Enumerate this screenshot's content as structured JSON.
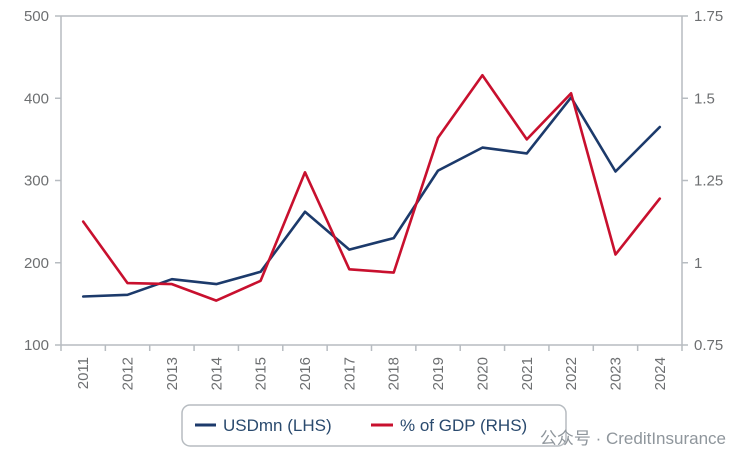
{
  "chart_data": {
    "type": "line",
    "categories": [
      "2011",
      "2012",
      "2013",
      "2014",
      "2015",
      "2016",
      "2017",
      "2018",
      "2019",
      "2020",
      "2021",
      "2022",
      "2023",
      "2024"
    ],
    "series": [
      {
        "name": "USDmn (LHS)",
        "axis": "left",
        "color": "#1c3a6b",
        "values": [
          159,
          161,
          180,
          174,
          189,
          262,
          216,
          230,
          312,
          340,
          333,
          401,
          311,
          365
        ]
      },
      {
        "name": "% of GDP (RHS)",
        "axis": "right",
        "color": "#c8102e",
        "values": [
          1.125,
          0.938,
          0.935,
          0.885,
          0.945,
          1.275,
          0.98,
          0.97,
          1.38,
          1.57,
          1.375,
          1.515,
          1.025,
          1.195
        ]
      }
    ],
    "left_axis": {
      "ylim": [
        100,
        500
      ],
      "ticks": [
        "100",
        "200",
        "300",
        "400",
        "500"
      ]
    },
    "right_axis": {
      "ylim": [
        0.75,
        1.75
      ],
      "ticks": [
        "0.75",
        "1",
        "1.25",
        "1.5",
        "1.75"
      ]
    },
    "legend_position": "bottom-center",
    "grid": false
  },
  "watermark": "公众号 · CreditInsurance"
}
